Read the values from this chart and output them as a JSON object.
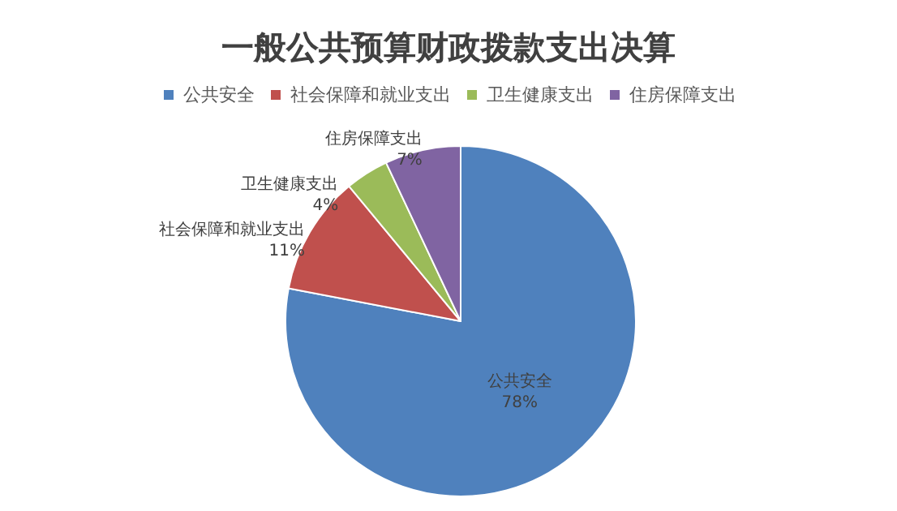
{
  "chart_data": {
    "type": "pie",
    "title": "一般公共预算财政拨款支出决算",
    "categories": [
      "公共安全",
      "社会保障和就业支出",
      "卫生健康支出",
      "住房保障支出"
    ],
    "values": [
      78,
      11,
      4,
      7
    ],
    "colors": [
      "#4f81bd",
      "#c0504d",
      "#9bbb59",
      "#8064a2"
    ],
    "value_labels": [
      "78%",
      "11%",
      "4%",
      "7%"
    ],
    "legend": "top"
  }
}
